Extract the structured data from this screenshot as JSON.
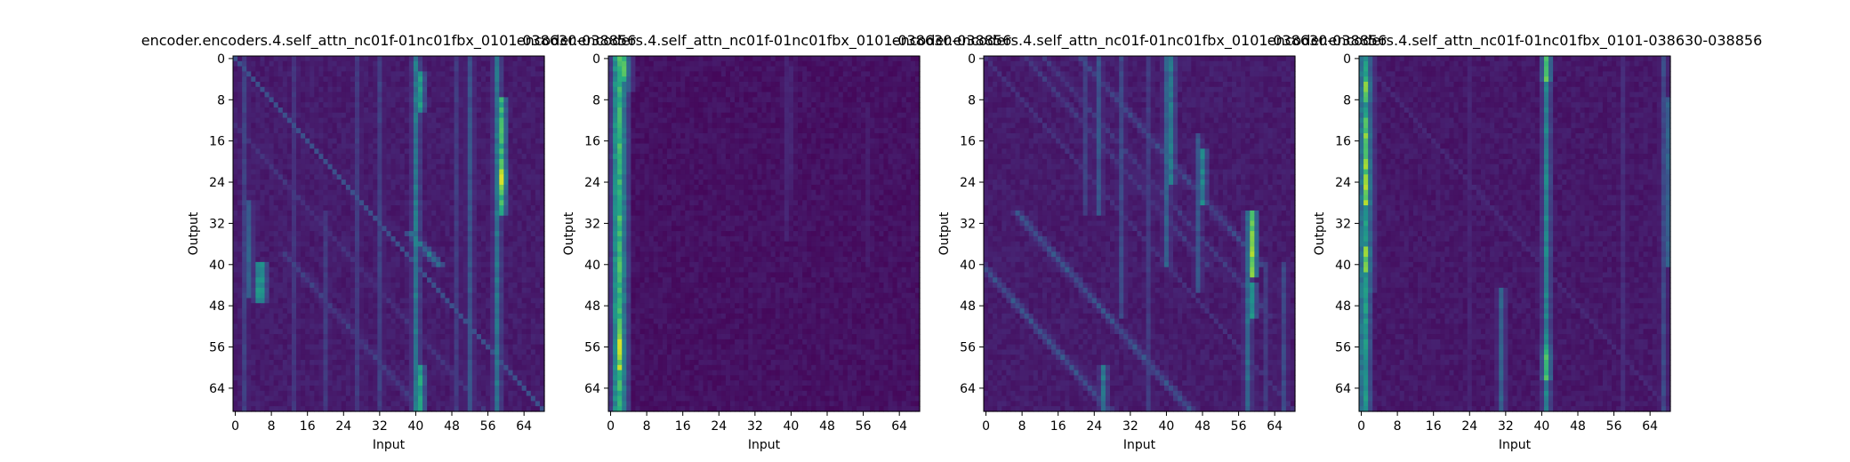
{
  "figure": {
    "background": "#ffffff"
  },
  "chart_data": [
    {
      "type": "heatmap",
      "title": "encoder.encoders.4.self_attn_nc01f-01nc01fbx_0101-038630-038856",
      "xlabel": "Input",
      "ylabel": "Output",
      "x_ticks": [
        0,
        8,
        16,
        24,
        32,
        40,
        48,
        56,
        64
      ],
      "y_ticks": [
        0,
        8,
        16,
        24,
        32,
        40,
        48,
        56,
        64
      ],
      "n_rows": 69,
      "n_cols": 69,
      "colormap": "viridis",
      "value_range": [
        0,
        1
      ],
      "background_level": 0.05,
      "column_bands": [
        {
          "col": 2,
          "rows": [
            0,
            68
          ],
          "intensity": 0.22
        },
        {
          "col": 3,
          "rows": [
            28,
            46
          ],
          "intensity": 0.35
        },
        {
          "col": 5,
          "rows": [
            40,
            47
          ],
          "intensity": 0.55
        },
        {
          "col": 6,
          "rows": [
            40,
            47
          ],
          "intensity": 0.55
        },
        {
          "col": 13,
          "rows": [
            0,
            68
          ],
          "intensity": 0.18
        },
        {
          "col": 20,
          "rows": [
            30,
            68
          ],
          "intensity": 0.2
        },
        {
          "col": 27,
          "rows": [
            0,
            68
          ],
          "intensity": 0.2
        },
        {
          "col": 32,
          "rows": [
            0,
            68
          ],
          "intensity": 0.22
        },
        {
          "col": 40,
          "rows": [
            0,
            68
          ],
          "intensity": 0.45
        },
        {
          "col": 41,
          "rows": [
            3,
            10
          ],
          "intensity": 0.6
        },
        {
          "col": 41,
          "rows": [
            60,
            68
          ],
          "intensity": 0.65
        },
        {
          "col": 49,
          "rows": [
            0,
            68
          ],
          "intensity": 0.2
        },
        {
          "col": 52,
          "rows": [
            0,
            68
          ],
          "intensity": 0.3
        },
        {
          "col": 58,
          "rows": [
            0,
            68
          ],
          "intensity": 0.45
        },
        {
          "col": 59,
          "rows": [
            8,
            30
          ],
          "intensity": 0.75
        },
        {
          "col": 59,
          "rows": [
            21,
            26
          ],
          "intensity": 0.95
        }
      ],
      "diagonal_intensity": 0.25,
      "diagonal_bands": [
        {
          "rows": [
            0,
            68
          ],
          "col_offset": -14,
          "intensity": 0.18
        },
        {
          "rows": [
            38,
            68
          ],
          "col_offset": -28,
          "intensity": 0.22
        },
        {
          "rows": [
            34,
            40
          ],
          "col_offset": 4,
          "intensity": 0.45
        }
      ]
    },
    {
      "type": "heatmap",
      "title": "encoder.encoders.4.self_attn_nc01f-01nc01fbx_0101-038630-038856",
      "xlabel": "Input",
      "ylabel": "Output",
      "x_ticks": [
        0,
        8,
        16,
        24,
        32,
        40,
        48,
        56,
        64
      ],
      "y_ticks": [
        0,
        8,
        16,
        24,
        32,
        40,
        48,
        56,
        64
      ],
      "n_rows": 69,
      "n_cols": 69,
      "colormap": "viridis",
      "value_range": [
        0,
        1
      ],
      "background_level": 0.02,
      "column_bands": [
        {
          "col": 1,
          "rows": [
            0,
            68
          ],
          "intensity": 0.55
        },
        {
          "col": 2,
          "rows": [
            0,
            68
          ],
          "intensity": 0.75
        },
        {
          "col": 3,
          "rows": [
            0,
            68
          ],
          "intensity": 0.45
        },
        {
          "col": 2,
          "rows": [
            52,
            60
          ],
          "intensity": 0.95
        },
        {
          "col": 3,
          "rows": [
            0,
            4
          ],
          "intensity": 0.8
        },
        {
          "col": 4,
          "rows": [
            0,
            6
          ],
          "intensity": 0.35
        },
        {
          "col": 39,
          "rows": [
            0,
            35
          ],
          "intensity": 0.12
        },
        {
          "col": 40,
          "rows": [
            2,
            25
          ],
          "intensity": 0.12
        },
        {
          "col": 57,
          "rows": [
            10,
            40
          ],
          "intensity": 0.1
        }
      ],
      "diagonal_intensity": 0.0,
      "diagonal_bands": []
    },
    {
      "type": "heatmap",
      "title": "encoder.encoders.4.self_attn_nc01f-01nc01fbx_0101-038630-038856",
      "xlabel": "Input",
      "ylabel": "Output",
      "x_ticks": [
        0,
        8,
        16,
        24,
        32,
        40,
        48,
        56,
        64
      ],
      "y_ticks": [
        0,
        8,
        16,
        24,
        32,
        40,
        48,
        56,
        64
      ],
      "n_rows": 69,
      "n_cols": 69,
      "colormap": "viridis",
      "value_range": [
        0,
        1
      ],
      "background_level": 0.05,
      "column_bands": [
        {
          "col": 22,
          "rows": [
            0,
            30
          ],
          "intensity": 0.22
        },
        {
          "col": 25,
          "rows": [
            0,
            30
          ],
          "intensity": 0.3
        },
        {
          "col": 26,
          "rows": [
            60,
            68
          ],
          "intensity": 0.45
        },
        {
          "col": 30,
          "rows": [
            0,
            50
          ],
          "intensity": 0.25
        },
        {
          "col": 36,
          "rows": [
            0,
            68
          ],
          "intensity": 0.2
        },
        {
          "col": 40,
          "rows": [
            0,
            40
          ],
          "intensity": 0.35
        },
        {
          "col": 41,
          "rows": [
            0,
            24
          ],
          "intensity": 0.45
        },
        {
          "col": 47,
          "rows": [
            15,
            45
          ],
          "intensity": 0.3
        },
        {
          "col": 48,
          "rows": [
            18,
            28
          ],
          "intensity": 0.5
        },
        {
          "col": 58,
          "rows": [
            30,
            68
          ],
          "intensity": 0.4
        },
        {
          "col": 59,
          "rows": [
            30,
            42
          ],
          "intensity": 0.9
        },
        {
          "col": 59,
          "rows": [
            44,
            50
          ],
          "intensity": 0.55
        },
        {
          "col": 62,
          "rows": [
            40,
            68
          ],
          "intensity": 0.2
        },
        {
          "col": 66,
          "rows": [
            40,
            68
          ],
          "intensity": 0.25
        }
      ],
      "diagonal_intensity": 0.15,
      "diagonal_bands": [
        {
          "rows": [
            40,
            68
          ],
          "col_offset": -42,
          "intensity": 0.3
        },
        {
          "rows": [
            30,
            68
          ],
          "col_offset": -24,
          "intensity": 0.3
        },
        {
          "rows": [
            0,
            40
          ],
          "col_offset": 8,
          "intensity": 0.2
        },
        {
          "rows": [
            0,
            40
          ],
          "col_offset": 20,
          "intensity": 0.25
        },
        {
          "rows": [
            0,
            50
          ],
          "col_offset": 12,
          "intensity": 0.2
        }
      ]
    },
    {
      "type": "heatmap",
      "title": "encoder.encoders.4.self_attn_nc01f-01nc01fbx_0101-038630-038856",
      "xlabel": "Input",
      "ylabel": "Output",
      "x_ticks": [
        0,
        8,
        16,
        24,
        32,
        40,
        48,
        56,
        64
      ],
      "y_ticks": [
        0,
        8,
        16,
        24,
        32,
        40,
        48,
        56,
        64
      ],
      "n_rows": 69,
      "n_cols": 69,
      "colormap": "viridis",
      "value_range": [
        0,
        1
      ],
      "background_level": 0.04,
      "column_bands": [
        {
          "col": 0,
          "rows": [
            0,
            68
          ],
          "intensity": 0.45
        },
        {
          "col": 1,
          "rows": [
            0,
            68
          ],
          "intensity": 0.6
        },
        {
          "col": 1,
          "rows": [
            12,
            28
          ],
          "intensity": 0.9
        },
        {
          "col": 1,
          "rows": [
            37,
            41
          ],
          "intensity": 0.95
        },
        {
          "col": 1,
          "rows": [
            4,
            8
          ],
          "intensity": 0.85
        },
        {
          "col": 2,
          "rows": [
            0,
            45
          ],
          "intensity": 0.35
        },
        {
          "col": 24,
          "rows": [
            0,
            68
          ],
          "intensity": 0.12
        },
        {
          "col": 31,
          "rows": [
            45,
            68
          ],
          "intensity": 0.35
        },
        {
          "col": 41,
          "rows": [
            0,
            68
          ],
          "intensity": 0.5
        },
        {
          "col": 41,
          "rows": [
            0,
            4
          ],
          "intensity": 0.85
        },
        {
          "col": 41,
          "rows": [
            56,
            62
          ],
          "intensity": 0.75
        },
        {
          "col": 58,
          "rows": [
            0,
            68
          ],
          "intensity": 0.15
        },
        {
          "col": 67,
          "rows": [
            0,
            68
          ],
          "intensity": 0.25
        },
        {
          "col": 68,
          "rows": [
            8,
            40
          ],
          "intensity": 0.35
        }
      ],
      "diagonal_intensity": 0.12,
      "diagonal_bands": []
    }
  ]
}
